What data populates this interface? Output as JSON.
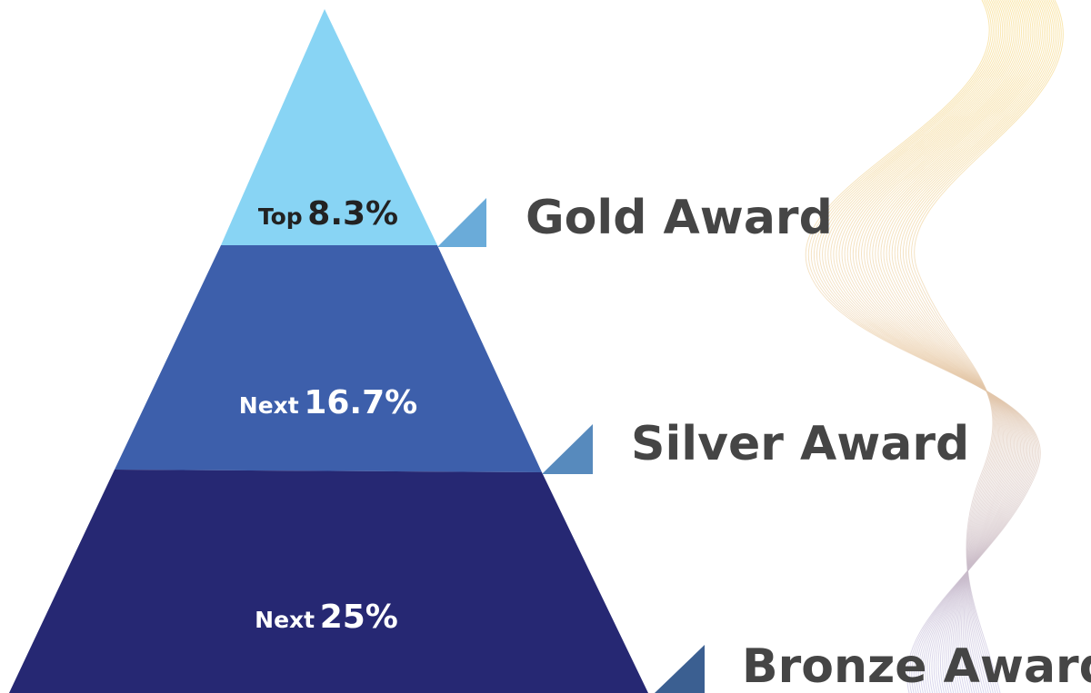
{
  "tiers": [
    {
      "prefix": "Top",
      "value": "8.3%",
      "award": "Gold Award"
    },
    {
      "prefix": "Next",
      "value": "16.7%",
      "award": "Silver Award"
    },
    {
      "prefix": "Next",
      "value": "25%",
      "award": "Bronze Award"
    }
  ]
}
